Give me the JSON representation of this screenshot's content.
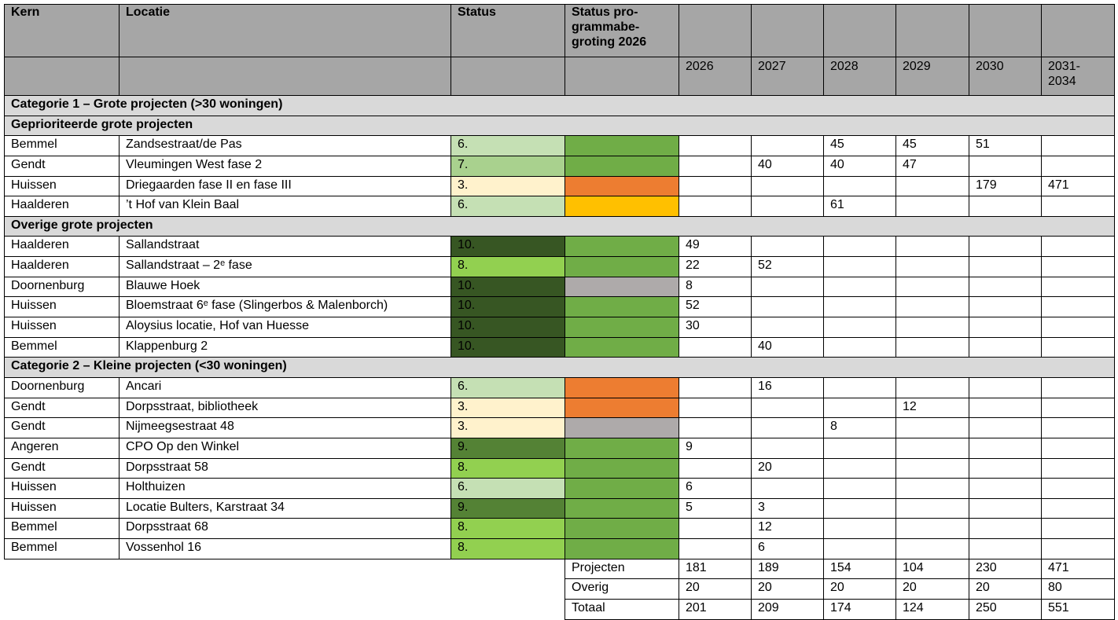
{
  "header": {
    "kern": "Kern",
    "locatie": "Locatie",
    "status": "Status",
    "program_status": [
      "Status pro-",
      "grammabe-",
      "groting 2026"
    ],
    "years": [
      2026,
      2027,
      2028,
      2029,
      2030,
      "2031-2034"
    ]
  },
  "rows": [
    {
      "heading": "Categorie 1 – Grote projecten (>30 woningen)"
    },
    {
      "heading": "Geprioriteerde grote projecten"
    },
    {
      "kern": "Bemmel",
      "locatie": "Zandsestraat/de Pas",
      "status": "6.",
      "status_color": "#c5e0b4",
      "program_color": "#70ad47",
      "values": [
        null,
        null,
        45,
        45,
        51,
        null
      ]
    },
    {
      "kern": "Gendt",
      "locatie": "Vleumingen West fase 2",
      "status": "7.",
      "status_color": "#a9d18e",
      "program_color": "#70ad47",
      "values": [
        null,
        40,
        40,
        47,
        null,
        null
      ]
    },
    {
      "kern": "Huissen",
      "locatie": "Driegaarden fase II en fase III",
      "status": "3.",
      "status_color": "#fff2cc",
      "program_color": "#ed7d31",
      "values": [
        null,
        null,
        null,
        null,
        179,
        471
      ]
    },
    {
      "kern": "Haalderen",
      "locatie": "’t Hof van Klein Baal",
      "status": "6.",
      "status_color": "#c5e0b4",
      "program_color": "#ffc000",
      "values": [
        null,
        null,
        61,
        null,
        null,
        null
      ]
    },
    {
      "heading": "Overige grote projecten"
    },
    {
      "kern": "Haalderen",
      "locatie": "Sallandstraat",
      "status": "10.",
      "status_color": "#375623",
      "program_color": "#70ad47",
      "values": [
        49,
        null,
        null,
        null,
        null,
        null
      ]
    },
    {
      "kern": "Haalderen",
      "locatie": "Sallandstraat – 2ᵉ fase",
      "status": "8.",
      "status_color": "#92d050",
      "program_color": "#70ad47",
      "values": [
        22,
        52,
        null,
        null,
        null,
        null
      ]
    },
    {
      "kern": "Doornenburg",
      "locatie": "Blauwe Hoek",
      "status": "10.",
      "status_color": "#375623",
      "program_color": "#aeaaaa",
      "values": [
        8,
        null,
        null,
        null,
        null,
        null
      ]
    },
    {
      "kern": "Huissen",
      "locatie": "Bloemstraat 6ᵉ fase (Slingerbos & Malenborch)",
      "status": "10.",
      "status_color": "#375623",
      "program_color": "#70ad47",
      "values": [
        52,
        null,
        null,
        null,
        null,
        null
      ]
    },
    {
      "kern": "Huissen",
      "locatie": "Aloysius locatie, Hof van Huesse",
      "status": "10.",
      "status_color": "#375623",
      "program_color": "#70ad47",
      "values": [
        30,
        null,
        null,
        null,
        null,
        null
      ]
    },
    {
      "kern": "Bemmel",
      "locatie": "Klappenburg 2",
      "status": "10.",
      "status_color": "#375623",
      "program_color": "#70ad47",
      "values": [
        null,
        40,
        null,
        null,
        null,
        null
      ]
    },
    {
      "heading": "Categorie 2 – Kleine projecten (<30 woningen)"
    },
    {
      "kern": "Doornenburg",
      "locatie": "Ancari",
      "status": "6.",
      "status_color": "#c5e0b4",
      "program_color": "#ed7d31",
      "values": [
        null,
        16,
        null,
        null,
        null,
        null
      ]
    },
    {
      "kern": "Gendt",
      "locatie": "Dorpsstraat, bibliotheek",
      "status": "3.",
      "status_color": "#fff2cc",
      "program_color": "#ed7d31",
      "values": [
        null,
        null,
        null,
        12,
        null,
        null
      ]
    },
    {
      "kern": "Gendt",
      "locatie": "Nijmeegsestraat 48",
      "status": "3.",
      "status_color": "#fff2cc",
      "program_color": "#aeaaaa",
      "values": [
        null,
        null,
        8,
        null,
        null,
        null
      ]
    },
    {
      "kern": "Angeren",
      "locatie": "CPO Op den Winkel",
      "status": "9.",
      "status_color": "#548235",
      "program_color": "#70ad47",
      "values": [
        9,
        null,
        null,
        null,
        null,
        null
      ]
    },
    {
      "kern": "Gendt",
      "locatie": "Dorpsstraat 58",
      "status": "8.",
      "status_color": "#92d050",
      "program_color": "#70ad47",
      "values": [
        null,
        20,
        null,
        null,
        null,
        null
      ]
    },
    {
      "kern": "Huissen",
      "locatie": "Holthuizen",
      "status": "6.",
      "status_color": "#c5e0b4",
      "program_color": "#70ad47",
      "values": [
        6,
        null,
        null,
        null,
        null,
        null
      ]
    },
    {
      "kern": "Huissen",
      "locatie": "Locatie Bulters, Karstraat 34",
      "status": "9.",
      "status_color": "#548235",
      "program_color": "#70ad47",
      "values": [
        5,
        3,
        null,
        null,
        null,
        null
      ]
    },
    {
      "kern": "Bemmel",
      "locatie": "Dorpsstraat 68",
      "status": "8.",
      "status_color": "#92d050",
      "program_color": "#70ad47",
      "values": [
        null,
        12,
        null,
        null,
        null,
        null
      ]
    },
    {
      "kern": "Bemmel",
      "locatie": "Vossenhol 16",
      "status": "8.",
      "status_color": "#92d050",
      "program_color": "#70ad47",
      "values": [
        null,
        6,
        null,
        null,
        null,
        null
      ]
    }
  ],
  "totals": [
    {
      "label": "Projecten",
      "values": [
        181,
        189,
        154,
        104,
        230,
        471
      ]
    },
    {
      "label": "Overig",
      "values": [
        20,
        20,
        20,
        20,
        20,
        80
      ]
    },
    {
      "label": "Totaal",
      "values": [
        201,
        209,
        174,
        124,
        250,
        551
      ]
    }
  ]
}
